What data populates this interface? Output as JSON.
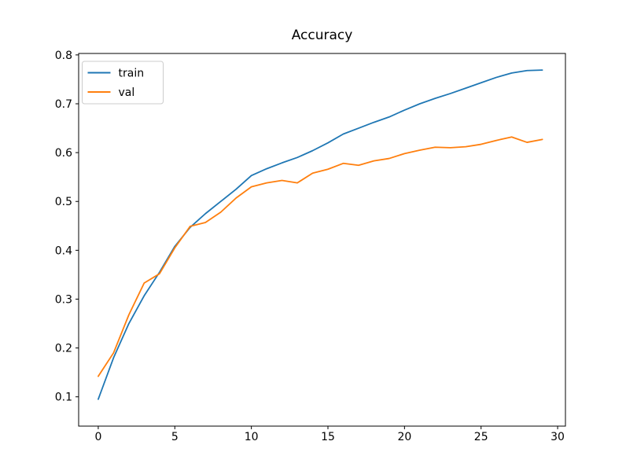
{
  "chart_data": {
    "type": "line",
    "title": "Accuracy",
    "x": [
      0,
      1,
      2,
      3,
      4,
      5,
      6,
      7,
      8,
      9,
      10,
      11,
      12,
      13,
      14,
      15,
      16,
      17,
      18,
      19,
      20,
      21,
      22,
      23,
      24,
      25,
      26,
      27,
      28,
      29
    ],
    "series": [
      {
        "name": "train",
        "color": "#1f77b4",
        "values": [
          0.095,
          0.18,
          0.25,
          0.307,
          0.355,
          0.408,
          0.447,
          0.475,
          0.5,
          0.525,
          0.553,
          0.567,
          0.579,
          0.59,
          0.604,
          0.62,
          0.638,
          0.65,
          0.662,
          0.673,
          0.687,
          0.7,
          0.711,
          0.721,
          0.732,
          0.743,
          0.754,
          0.763,
          0.768,
          0.769
        ]
      },
      {
        "name": "val",
        "color": "#ff7f0e",
        "values": [
          0.142,
          0.19,
          0.268,
          0.333,
          0.352,
          0.405,
          0.449,
          0.457,
          0.478,
          0.507,
          0.53,
          0.538,
          0.543,
          0.538,
          0.558,
          0.566,
          0.578,
          0.574,
          0.583,
          0.588,
          0.598,
          0.605,
          0.611,
          0.61,
          0.612,
          0.617,
          0.625,
          0.632,
          0.621,
          0.627
        ]
      }
    ],
    "xticks": [
      0,
      5,
      10,
      15,
      20,
      25,
      30
    ],
    "yticks": [
      0.1,
      0.2,
      0.3,
      0.4,
      0.5,
      0.6,
      0.7,
      0.8
    ],
    "xlim": [
      -1.28,
      30.51
    ],
    "ylim": [
      0.04,
      0.803
    ],
    "legend": {
      "position": "upper left",
      "entries": [
        "train",
        "val"
      ]
    },
    "grid": false,
    "background": "#ffffff",
    "axis_color": "#000000",
    "legend_border_color": "#cccccc"
  }
}
